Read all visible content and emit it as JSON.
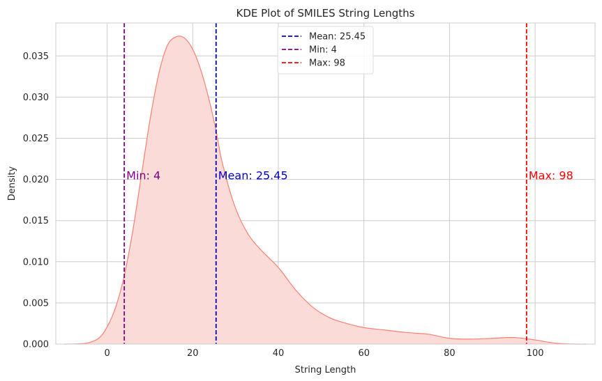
{
  "chart_data": {
    "type": "area",
    "title": "KDE Plot of SMILES String Lengths",
    "xlabel": "String Length",
    "ylabel": "Density",
    "xlim": [
      -12,
      114
    ],
    "ylim": [
      0,
      0.039
    ],
    "xticks": [
      0,
      20,
      40,
      60,
      80,
      100
    ],
    "yticks": [
      0.0,
      0.005,
      0.01,
      0.015,
      0.02,
      0.025,
      0.03,
      0.035
    ],
    "xtick_labels": [
      "0",
      "20",
      "40",
      "60",
      "80",
      "100"
    ],
    "ytick_labels": [
      "0.000",
      "0.005",
      "0.010",
      "0.015",
      "0.020",
      "0.025",
      "0.030",
      "0.035"
    ],
    "grid": true,
    "legend_position": "top-center",
    "series": [
      {
        "fill_color": "#fadbd8",
        "line_color": "#fa8072",
        "x": [
          -10,
          -5,
          -2,
          0,
          2,
          4,
          6,
          8,
          10,
          12,
          14,
          16,
          18,
          20,
          22,
          24,
          25.45,
          27,
          30,
          33,
          36,
          40,
          44,
          48,
          52,
          56,
          60,
          65,
          70,
          75,
          80,
          85,
          90,
          95,
          100,
          105,
          110,
          112
        ],
        "y": [
          0.0,
          0.0001,
          0.0007,
          0.0021,
          0.0045,
          0.0083,
          0.0138,
          0.0205,
          0.0272,
          0.0327,
          0.0362,
          0.0373,
          0.0372,
          0.0358,
          0.0331,
          0.0293,
          0.0259,
          0.0218,
          0.0165,
          0.0133,
          0.0114,
          0.0093,
          0.0066,
          0.0045,
          0.0032,
          0.0025,
          0.002,
          0.0017,
          0.0014,
          0.0012,
          0.0007,
          0.0006,
          0.0007,
          0.0008,
          0.0005,
          0.0001,
          0.0,
          0.0
        ]
      }
    ],
    "vlines": [
      {
        "x": 25.45,
        "color": "#0000cd",
        "legend": "Mean: 25.45",
        "annotation": "Mean: 25.45",
        "annotation_y": 0.02
      },
      {
        "x": 4,
        "color": "#800080",
        "legend": "Min: 4",
        "annotation": "Min: 4",
        "annotation_y": 0.02
      },
      {
        "x": 98,
        "color": "#ff0000",
        "legend": "Max: 98",
        "annotation": "Max: 98",
        "annotation_y": 0.02
      }
    ]
  }
}
